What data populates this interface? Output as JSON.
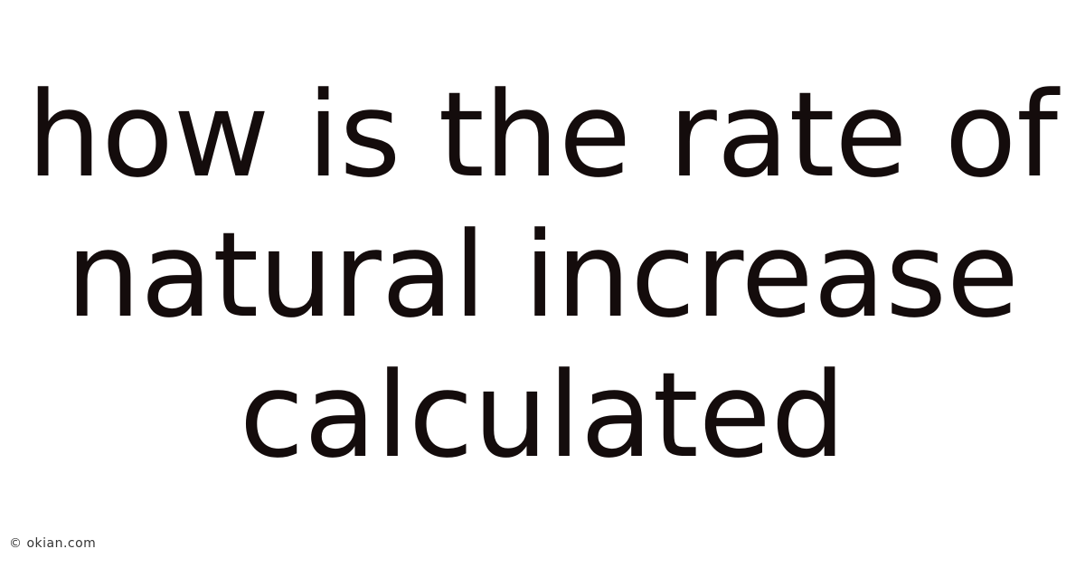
{
  "title_lines": [
    "how is the rate of",
    "natural increase",
    "calculated"
  ],
  "watermark": "© okian.com",
  "colors": {
    "background": "#ffffff",
    "text": "#140c0c"
  }
}
